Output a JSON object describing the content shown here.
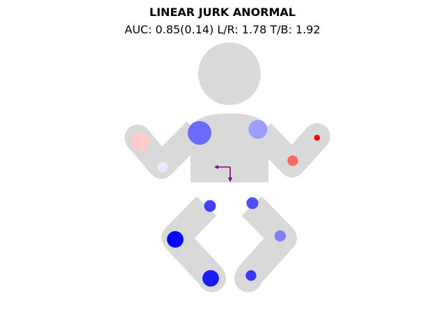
{
  "title": "LINEAR JURK ANORMAL",
  "subtitle": "AUC: 0.85(0.14) L/R: 1.78 T/B: 1.92",
  "colors": {
    "silhouette": "#d9d9d9",
    "arrow": "#800080",
    "positive": "#ff0000",
    "negative": "#0000ff"
  },
  "chart_data": {
    "type": "scatter",
    "title": "LINEAR JURK ANORMAL",
    "subtitle": "AUC: 0.85(0.14) L/R: 1.78 T/B: 1.92",
    "metrics": {
      "AUC": 0.85,
      "AUC_sd": 0.14,
      "L/R": 1.78,
      "T/B": 1.92
    },
    "points": [
      {
        "location": "right-hand",
        "color": "#ffcccc",
        "size": 0.8
      },
      {
        "location": "right-shoulder",
        "color": "#6b6bff",
        "size": 1.0
      },
      {
        "location": "left-shoulder",
        "color": "#9e9eff",
        "size": 0.8
      },
      {
        "location": "left-hand",
        "color": "#ff0000",
        "size": 0.25
      },
      {
        "location": "right-elbow",
        "color": "#e8e8ff",
        "size": 0.45
      },
      {
        "location": "left-elbow",
        "color": "#ff6666",
        "size": 0.45
      },
      {
        "location": "right-hip",
        "color": "#4040ff",
        "size": 0.5
      },
      {
        "location": "left-hip",
        "color": "#4e4eff",
        "size": 0.5
      },
      {
        "location": "right-knee",
        "color": "#0000ff",
        "size": 0.7
      },
      {
        "location": "left-knee",
        "color": "#7e7eff",
        "size": 0.48
      },
      {
        "location": "right-foot",
        "color": "#1a1aff",
        "size": 0.7
      },
      {
        "location": "left-foot",
        "color": "#3838ff",
        "size": 0.45
      }
    ],
    "arrow": {
      "dx": -1,
      "dy": -1.2,
      "color": "#800080"
    }
  }
}
